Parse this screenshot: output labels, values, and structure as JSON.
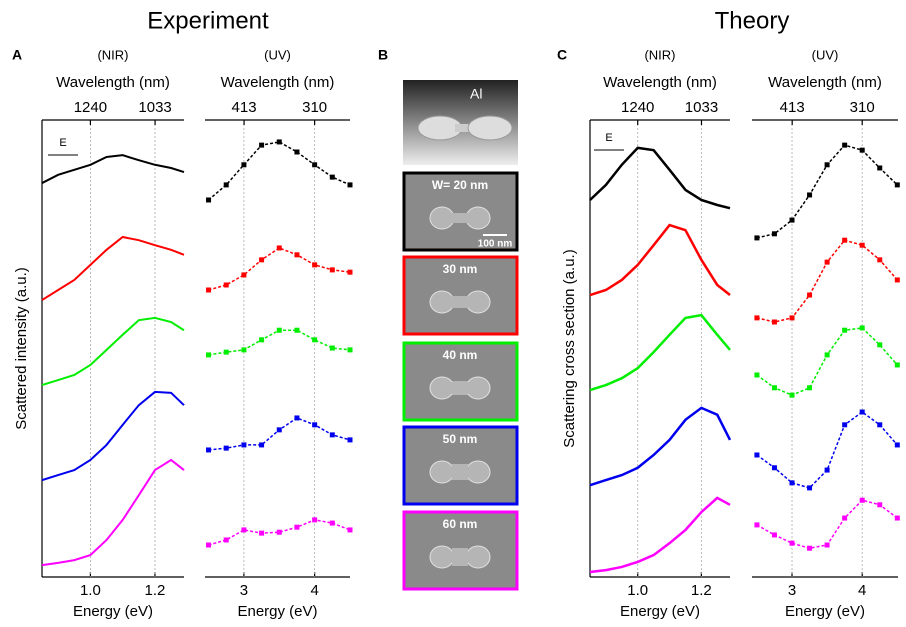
{
  "figure": {
    "experiment_title": "Experiment",
    "theory_title": "Theory",
    "panel_labels": [
      "A",
      "B",
      "C"
    ],
    "panel_b": {
      "model_label": "Al",
      "scale_bar": "100 nm",
      "widths": [
        "W= 20 nm",
        "30 nm",
        "40 nm",
        "50 nm",
        "60 nm"
      ]
    },
    "polarization_label": "E"
  },
  "chart_data": [
    {
      "type": "line",
      "subtitle": "(NIR)",
      "xlabel": "Energy (eV)",
      "x2label": "Wavelength (nm)",
      "ylabel": "Scattered intensity (a.u.)",
      "xlim": [
        0.85,
        1.29
      ],
      "xticks": [
        {
          "value": 1,
          "label": "1.0"
        },
        {
          "value": 1.2,
          "label": "1.2"
        }
      ],
      "x2ticks": [
        1240,
        1033
      ],
      "ylim": [
        0,
        10
      ],
      "grid": true,
      "x": [
        0.85,
        0.9,
        0.95,
        1.0,
        1.05,
        1.1,
        1.15,
        1.2,
        1.25,
        1.29
      ],
      "series": [
        {
          "color": "#000000",
          "values": [
            8.62,
            8.8,
            8.91,
            9.02,
            9.19,
            9.23,
            9.12,
            9.02,
            8.95,
            8.86
          ]
        },
        {
          "color": "#ff0000",
          "values": [
            6.06,
            6.28,
            6.5,
            6.83,
            7.16,
            7.44,
            7.37,
            7.26,
            7.16,
            7.05
          ]
        },
        {
          "color": "#00ee00",
          "values": [
            4.2,
            4.31,
            4.42,
            4.64,
            4.97,
            5.3,
            5.62,
            5.67,
            5.58,
            5.4
          ]
        },
        {
          "color": "#0000ee",
          "values": [
            2.12,
            2.23,
            2.34,
            2.56,
            2.89,
            3.33,
            3.76,
            4.05,
            4.03,
            3.76
          ]
        },
        {
          "color": "#ff00ff",
          "values": [
            0.26,
            0.31,
            0.37,
            0.48,
            0.81,
            1.25,
            1.79,
            2.34,
            2.56,
            2.34
          ]
        }
      ]
    },
    {
      "type": "scatter",
      "subtitle": "(UV)",
      "xlabel": "Energy (eV)",
      "x2label": "Wavelength (nm)",
      "xlim": [
        2.45,
        4.5
      ],
      "xticks": [
        3,
        4
      ],
      "x2ticks": [
        413,
        310
      ],
      "ylim": [
        0,
        10
      ],
      "grid": true,
      "x": [
        2.5,
        2.75,
        3.0,
        3.25,
        3.5,
        3.75,
        4.0,
        4.25,
        4.5
      ],
      "series": [
        {
          "color": "#000000",
          "values": [
            8.25,
            8.58,
            9.02,
            9.45,
            9.52,
            9.3,
            9.02,
            8.75,
            8.58
          ]
        },
        {
          "color": "#ff0000",
          "values": [
            6.28,
            6.39,
            6.61,
            6.94,
            7.2,
            7.05,
            6.83,
            6.72,
            6.67
          ]
        },
        {
          "color": "#00ee00",
          "values": [
            4.86,
            4.92,
            4.97,
            5.19,
            5.4,
            5.4,
            5.19,
            5.01,
            4.97
          ]
        },
        {
          "color": "#0000ee",
          "values": [
            2.78,
            2.82,
            2.89,
            2.89,
            3.22,
            3.48,
            3.33,
            3.11,
            3.0
          ]
        },
        {
          "color": "#ff00ff",
          "values": [
            0.7,
            0.81,
            1.03,
            0.96,
            0.98,
            1.09,
            1.25,
            1.18,
            1.03
          ]
        }
      ]
    },
    {
      "type": "line",
      "subtitle": "(NIR)",
      "xlabel": "Energy (eV)",
      "x2label": "Wavelength (nm)",
      "ylabel": "Scattering cross section (a.u.)",
      "xlim": [
        0.85,
        1.29
      ],
      "xticks": [
        {
          "value": 1,
          "label": "1.0"
        },
        {
          "value": 1.2,
          "label": "1.2"
        }
      ],
      "x2ticks": [
        1240,
        1033
      ],
      "ylim": [
        0,
        10
      ],
      "grid": true,
      "x": [
        0.85,
        0.9,
        0.95,
        1.0,
        1.05,
        1.1,
        1.15,
        1.2,
        1.25,
        1.29
      ],
      "series": [
        {
          "color": "#000000",
          "values": [
            8.25,
            8.58,
            9.02,
            9.39,
            9.34,
            8.91,
            8.47,
            8.25,
            8.14,
            8.07
          ]
        },
        {
          "color": "#ff0000",
          "values": [
            6.17,
            6.28,
            6.5,
            6.83,
            7.26,
            7.7,
            7.59,
            6.94,
            6.39,
            6.17
          ]
        },
        {
          "color": "#00ee00",
          "values": [
            4.09,
            4.2,
            4.35,
            4.57,
            4.92,
            5.3,
            5.67,
            5.73,
            5.3,
            4.97
          ]
        },
        {
          "color": "#0000ee",
          "values": [
            2.01,
            2.12,
            2.23,
            2.39,
            2.67,
            3.0,
            3.44,
            3.7,
            3.55,
            3.0
          ]
        },
        {
          "color": "#ff00ff",
          "values": [
            0.11,
            0.15,
            0.22,
            0.33,
            0.48,
            0.74,
            1.03,
            1.42,
            1.73,
            1.58
          ]
        }
      ]
    },
    {
      "type": "scatter",
      "subtitle": "(UV)",
      "xlabel": "Energy (eV)",
      "x2label": "Wavelength (nm)",
      "xlim": [
        2.43,
        4.51
      ],
      "xticks": [
        3,
        4
      ],
      "x2ticks": [
        413,
        310
      ],
      "ylim": [
        0,
        10
      ],
      "grid": true,
      "x": [
        2.5,
        2.75,
        3.0,
        3.25,
        3.5,
        3.75,
        4.0,
        4.25,
        4.5
      ],
      "series": [
        {
          "color": "#000000",
          "values": [
            7.42,
            7.51,
            7.81,
            8.36,
            9.02,
            9.45,
            9.34,
            8.95,
            8.58
          ]
        },
        {
          "color": "#ff0000",
          "values": [
            5.67,
            5.58,
            5.67,
            6.17,
            6.89,
            7.37,
            7.26,
            6.94,
            6.5
          ]
        },
        {
          "color": "#00ee00",
          "values": [
            4.42,
            4.14,
            3.98,
            4.14,
            4.86,
            5.4,
            5.45,
            5.08,
            4.64
          ]
        },
        {
          "color": "#0000ee",
          "values": [
            2.67,
            2.39,
            2.06,
            1.95,
            2.34,
            3.33,
            3.61,
            3.33,
            2.89
          ]
        },
        {
          "color": "#ff00ff",
          "values": [
            1.14,
            0.92,
            0.74,
            0.63,
            0.7,
            1.29,
            1.68,
            1.58,
            1.29
          ]
        }
      ]
    }
  ]
}
